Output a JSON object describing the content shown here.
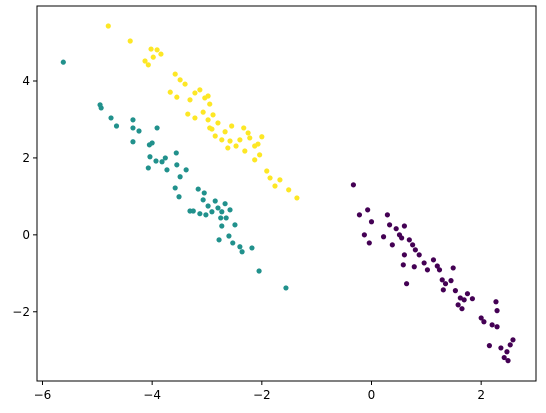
{
  "chart_data": {
    "type": "scatter",
    "xlim": [
      -6.1,
      3.0
    ],
    "ylim": [
      -3.8,
      5.95
    ],
    "xticks": [
      {
        "value": -6,
        "label": "−6"
      },
      {
        "value": -4,
        "label": "−4"
      },
      {
        "value": -2,
        "label": "−2"
      },
      0,
      2
    ],
    "yticks": [
      {
        "value": -2,
        "label": "−2"
      },
      0,
      2,
      4
    ],
    "grid": false,
    "series": [
      {
        "color": "#fde725",
        "x": [
          -4.8,
          -4.4,
          -4.13,
          -4.07,
          -4.02,
          -3.91,
          -3.98,
          -3.84,
          -3.58,
          -3.49,
          -3.4,
          -3.67,
          -3.55,
          -3.31,
          -3.22,
          -3.13,
          -3.04,
          -2.98,
          -2.95,
          -3.35,
          -3.22,
          -3.07,
          -2.98,
          -2.89,
          -2.91,
          -2.8,
          -2.67,
          -2.58,
          -2.62,
          -2.47,
          -2.4,
          -2.31,
          -2.22,
          -2.13,
          -2.07,
          -2.0,
          -2.13,
          -2.04,
          -1.91,
          -1.85,
          -1.76,
          -1.67,
          -1.51,
          -1.36,
          -2.95,
          -2.85,
          -2.73,
          -2.55,
          -2.33,
          -2.25
        ],
        "values": [
          5.43,
          5.04,
          4.52,
          4.42,
          4.83,
          4.81,
          4.62,
          4.7,
          4.18,
          4.03,
          3.92,
          3.71,
          3.58,
          3.51,
          3.69,
          3.77,
          3.56,
          3.61,
          3.4,
          3.14,
          3.04,
          3.19,
          2.99,
          3.12,
          2.75,
          2.91,
          2.68,
          2.44,
          2.26,
          2.31,
          2.47,
          2.18,
          2.52,
          2.31,
          2.36,
          2.55,
          1.95,
          2.08,
          1.66,
          1.48,
          1.27,
          1.43,
          1.17,
          0.96,
          2.78,
          2.57,
          2.47,
          2.83,
          2.78,
          2.65
        ]
      },
      {
        "color": "#21918c",
        "x": [
          -5.62,
          -4.95,
          -4.93,
          -4.75,
          -4.65,
          -4.35,
          -4.35,
          -4.35,
          -4.24,
          -4.05,
          -4.0,
          -3.91,
          -4.04,
          -3.93,
          -3.82,
          -3.76,
          -4.07,
          -3.73,
          -3.56,
          -3.55,
          -3.49,
          -3.38,
          -3.58,
          -3.51,
          -3.31,
          -3.16,
          -3.05,
          -3.07,
          -2.98,
          -3.13,
          -2.91,
          -2.8,
          -2.73,
          -2.85,
          -2.67,
          -2.58,
          -2.49,
          -2.73,
          -2.78,
          -2.6,
          -2.53,
          -2.4,
          -2.36,
          -2.18,
          -2.05,
          -1.56,
          -3.25,
          -2.75,
          -3.02,
          -2.65
        ],
        "values": [
          4.49,
          3.38,
          3.3,
          3.04,
          2.83,
          2.99,
          2.78,
          2.42,
          2.7,
          2.34,
          2.39,
          2.78,
          2.03,
          1.92,
          1.9,
          2.0,
          1.74,
          1.69,
          2.13,
          1.82,
          1.51,
          1.69,
          1.22,
          0.99,
          0.62,
          1.19,
          1.09,
          0.91,
          0.75,
          0.55,
          0.6,
          0.7,
          0.6,
          0.88,
          0.81,
          0.65,
          0.26,
          0.23,
          -0.13,
          -0.03,
          -0.21,
          -0.31,
          -0.44,
          -0.34,
          -0.94,
          -1.38,
          0.62,
          0.44,
          0.52,
          0.44
        ]
      },
      {
        "color": "#440154",
        "x": [
          -0.33,
          -0.22,
          -0.07,
          0.0,
          -0.13,
          -0.04,
          0.29,
          0.33,
          0.45,
          0.51,
          0.22,
          0.38,
          0.6,
          0.55,
          0.69,
          0.75,
          0.6,
          0.8,
          0.87,
          0.58,
          0.78,
          0.96,
          1.02,
          1.13,
          1.2,
          0.64,
          1.24,
          1.29,
          1.35,
          1.31,
          1.45,
          1.49,
          1.53,
          1.62,
          1.58,
          1.69,
          1.75,
          1.65,
          1.84,
          2.0,
          2.05,
          2.2,
          2.27,
          2.29,
          2.15,
          2.29,
          2.36,
          2.42,
          2.47,
          2.53,
          2.58,
          2.49
        ],
        "values": [
          1.3,
          0.52,
          0.65,
          0.34,
          0.0,
          -0.21,
          0.52,
          0.26,
          0.16,
          0.0,
          -0.05,
          -0.26,
          0.23,
          -0.08,
          -0.13,
          -0.26,
          -0.52,
          -0.39,
          -0.52,
          -0.78,
          -0.83,
          -0.73,
          -0.91,
          -0.65,
          -0.81,
          -1.27,
          -0.91,
          -1.17,
          -1.27,
          -1.43,
          -1.19,
          -0.86,
          -1.45,
          -1.64,
          -1.82,
          -1.69,
          -1.53,
          -1.92,
          -1.66,
          -2.16,
          -2.26,
          -2.34,
          -1.74,
          -1.97,
          -2.88,
          -2.39,
          -2.94,
          -3.19,
          -3.04,
          -2.86,
          -2.73,
          -3.27
        ]
      }
    ]
  }
}
